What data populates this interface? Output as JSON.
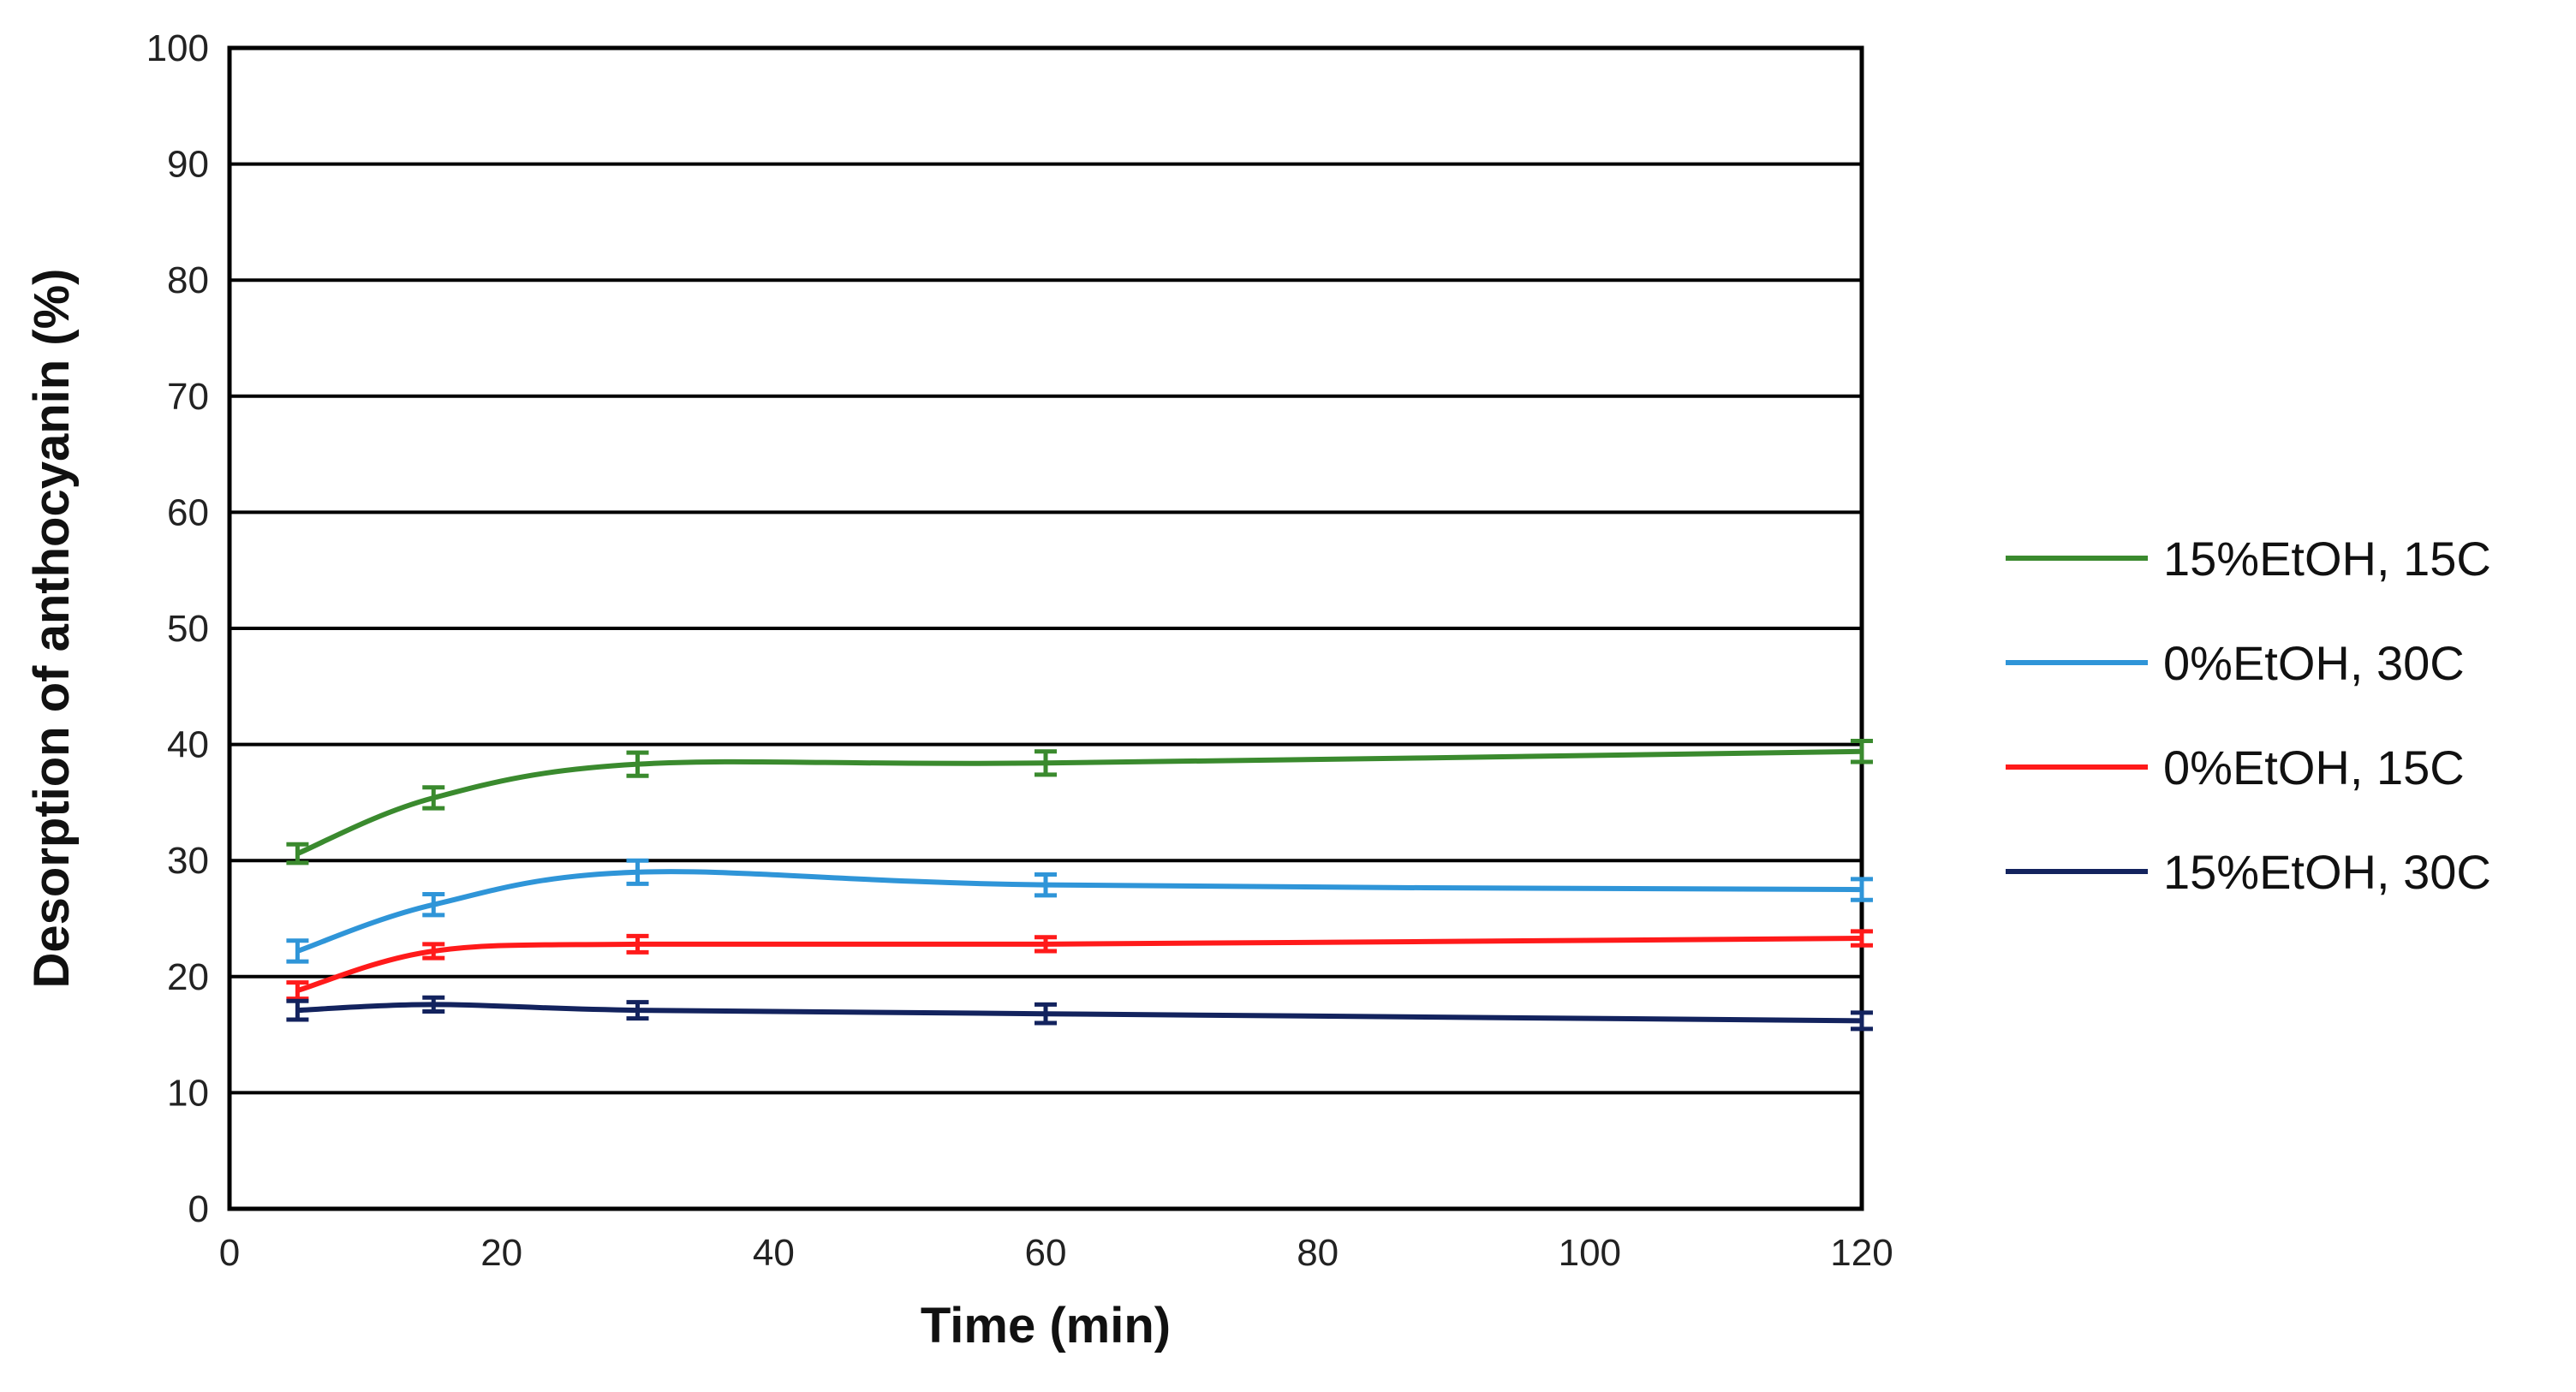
{
  "chart_data": {
    "type": "line",
    "title": "",
    "xlabel": "Time (min)",
    "ylabel": "Desorption of anthocyanin (%)",
    "xlim": [
      0,
      120
    ],
    "ylim": [
      0,
      100
    ],
    "xticks": [
      0,
      20,
      40,
      60,
      80,
      100,
      120
    ],
    "yticks": [
      0,
      10,
      20,
      30,
      40,
      50,
      60,
      70,
      80,
      90,
      100
    ],
    "grid": "horizontal",
    "legend_position": "right",
    "x": [
      5,
      15,
      30,
      60,
      120
    ],
    "series": [
      {
        "name": "15%EtOH, 15C",
        "color": "#3a8a2e",
        "values": [
          30.6,
          35.4,
          38.3,
          38.4,
          39.4
        ],
        "errors": [
          0.8,
          0.9,
          1.0,
          1.0,
          0.9
        ]
      },
      {
        "name": "0%EtOH, 30C",
        "color": "#2f95d8",
        "values": [
          22.2,
          26.2,
          29.0,
          27.9,
          27.5
        ],
        "errors": [
          0.9,
          0.9,
          1.0,
          0.9,
          0.9
        ]
      },
      {
        "name": "0%EtOH, 15C",
        "color": "#ff1a1a",
        "values": [
          18.8,
          22.2,
          22.8,
          22.8,
          23.3
        ],
        "errors": [
          0.7,
          0.6,
          0.7,
          0.6,
          0.6
        ]
      },
      {
        "name": "15%EtOH, 30C",
        "color": "#13235e",
        "values": [
          17.1,
          17.6,
          17.1,
          16.8,
          16.2
        ],
        "errors": [
          0.8,
          0.6,
          0.7,
          0.8,
          0.7
        ]
      }
    ]
  }
}
